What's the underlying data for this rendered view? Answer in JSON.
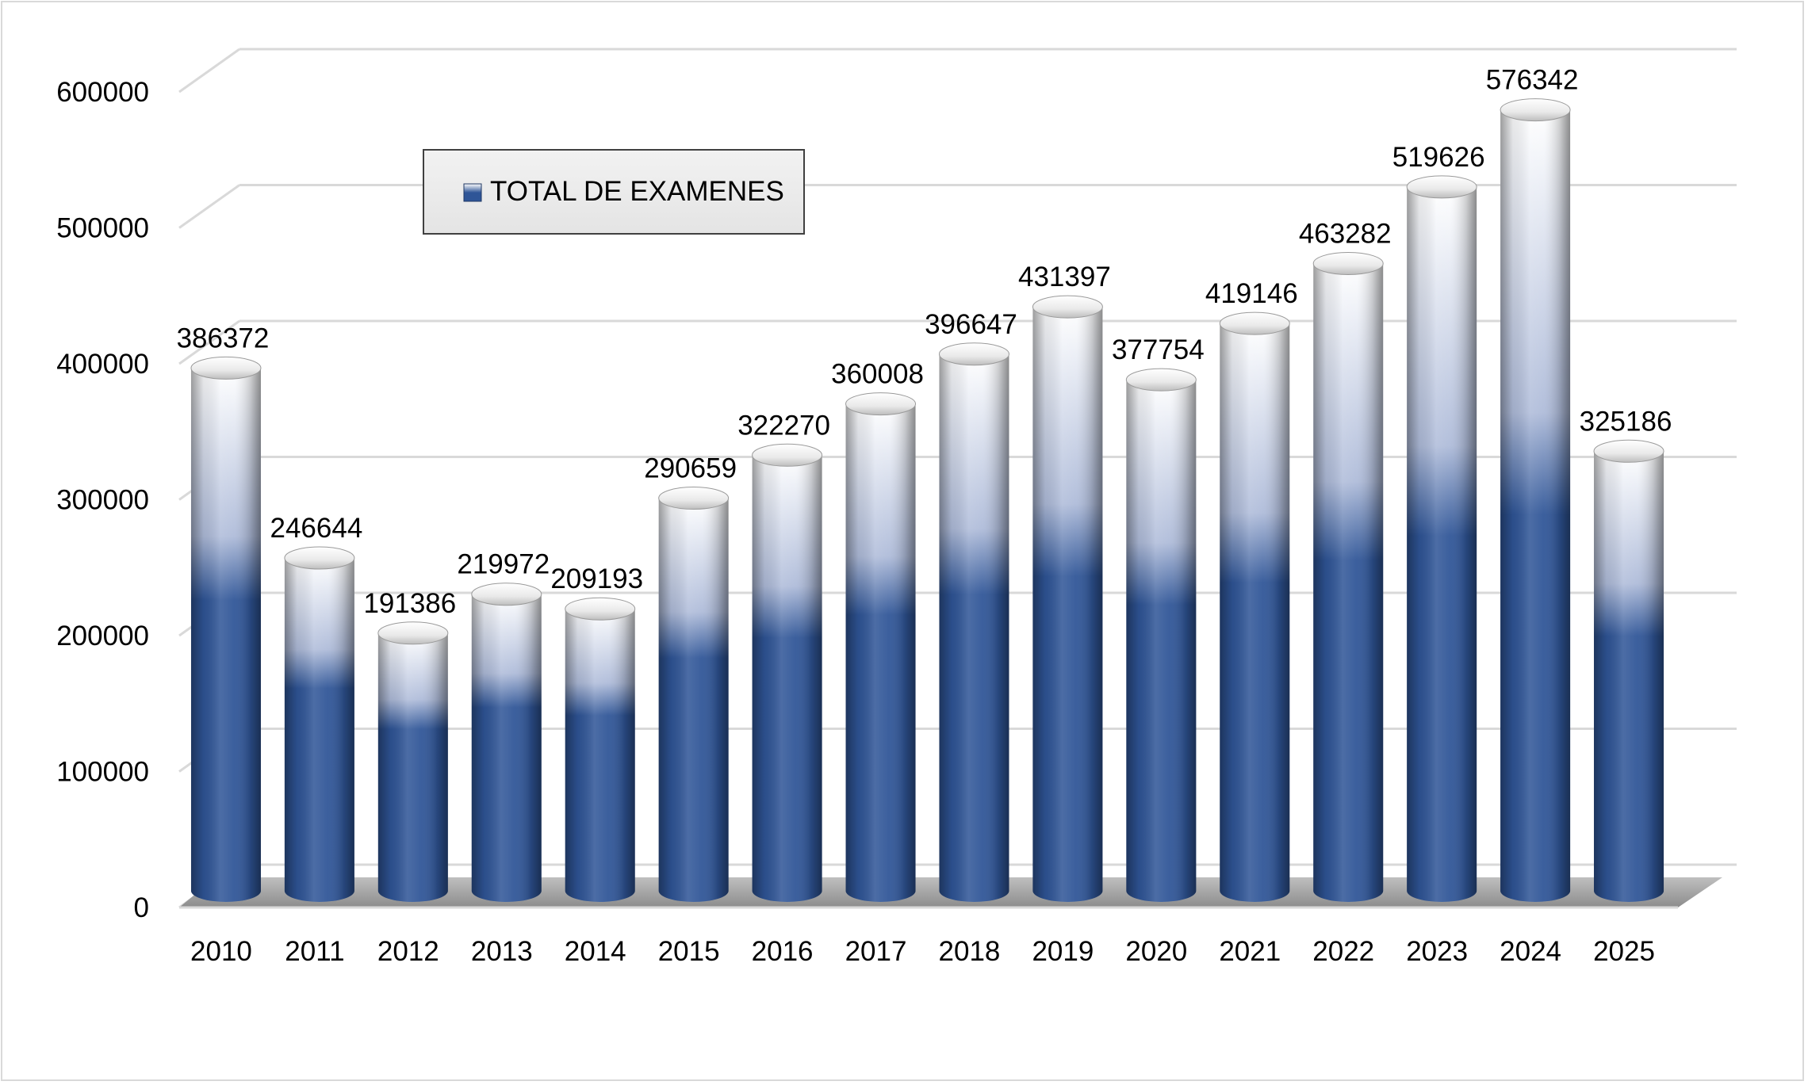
{
  "chart_data": {
    "type": "bar",
    "style": "3d-cylinder",
    "categories": [
      "2010",
      "2011",
      "2012",
      "2013",
      "2014",
      "2015",
      "2016",
      "2017",
      "2018",
      "2019",
      "2020",
      "2021",
      "2022",
      "2023",
      "2024",
      "2025"
    ],
    "series": [
      {
        "name": "TOTAL DE EXAMENES",
        "values": [
          386372,
          246644,
          191386,
          219972,
          209193,
          290659,
          322270,
          360008,
          396647,
          431397,
          377754,
          419146,
          463282,
          519626,
          576342,
          325186
        ]
      }
    ],
    "data_labels": [
      "386372",
      "246644",
      "191386",
      "219972",
      "209193",
      "290659",
      "322270",
      "360008",
      "396647",
      "431397",
      "377754",
      "419146",
      "463282",
      "519626",
      "576342",
      "325186"
    ],
    "yticks": [
      "0",
      "100000",
      "200000",
      "300000",
      "400000",
      "500000",
      "600000"
    ],
    "ylim": [
      0,
      600000
    ],
    "grid": true,
    "legend_position": "top-left",
    "colors": {
      "bar_dark": "#2f5597",
      "bar_light": "#ffffff",
      "gridline": "#d9d9d9",
      "floor": "#a6a6a6"
    }
  }
}
